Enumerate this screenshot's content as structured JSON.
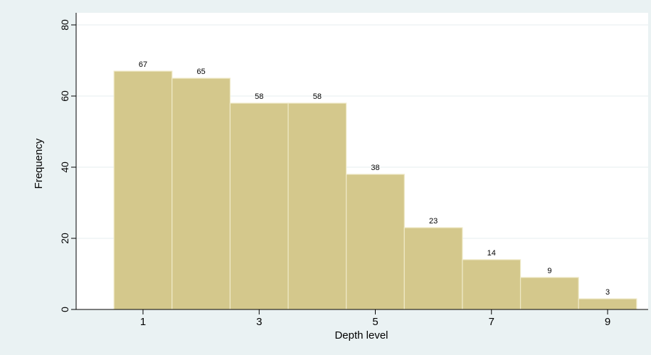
{
  "chart_data": {
    "type": "bar",
    "xlabel": "Depth level",
    "ylabel": "Frequency",
    "categories": [
      "1",
      "2",
      "3",
      "4",
      "5",
      "6",
      "7",
      "8",
      "9"
    ],
    "values": [
      67,
      65,
      58,
      58,
      38,
      23,
      14,
      9,
      3
    ],
    "data_labels": [
      "67",
      "65",
      "58",
      "58",
      "38",
      "23",
      "14",
      "9",
      "3"
    ],
    "x_ticks": [
      "1",
      "3",
      "5",
      "7",
      "9"
    ],
    "y_ticks": [
      "0",
      "20",
      "40",
      "60",
      "80"
    ],
    "ylim": [
      0,
      80
    ],
    "grid": true,
    "legend": "none",
    "colors": {
      "bar_fill": "#d4c88c",
      "bar_stroke": "#efe9c8",
      "plot_bg": "#ffffff",
      "outer_bg": "#eaf2f3",
      "grid": "#e9f1f2",
      "axis": "#000000"
    }
  }
}
